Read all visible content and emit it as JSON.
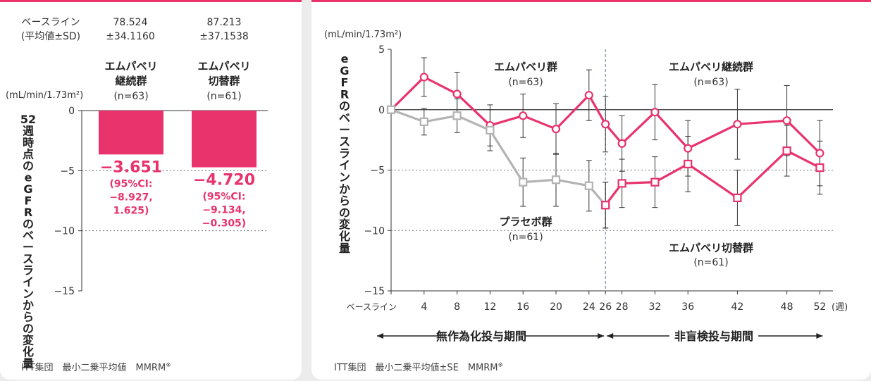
{
  "left": {
    "baseline_label": "ベースライン",
    "baseline_sub": "(平均値±SD)",
    "baseline_values": [
      "78.524",
      "87.213"
    ],
    "baseline_sds": [
      "±34.1160",
      "±37.1538"
    ],
    "unit": "(mL/min/1.73m²)",
    "y_label": "52週時点のeGFRのベースラインからの変化量",
    "footnote_main": "ITT集団　最小二乗平均値　MMRM",
    "footnote_mark": "※"
  },
  "right": {
    "unit": "(mL/min/1.73m²)",
    "y_label": "eGFRのベースラインからの変化量",
    "x_unit": "(週)",
    "period1": "無作為化投与期間",
    "period2": "非盲検投与期間",
    "labels": {
      "emp_group": "エムパベリ群",
      "emp_group_n": "(n=63)",
      "cont_group": "エムパベリ継続群",
      "cont_group_n": "(n=63)",
      "placebo_group": "プラセボ群",
      "placebo_group_n": "(n=61)",
      "switch_group": "エムパベリ切替群",
      "switch_group_n": "(n=61)"
    },
    "footnote_main": "ITT集団　最小二乗平均値±SE　MMRM",
    "footnote_mark": "※"
  },
  "chart_data": [
    {
      "type": "bar",
      "categories": [
        "エムパベリ継続群",
        "エムパベリ切替群"
      ],
      "category_lines": [
        [
          "エムパベリ",
          "継続群",
          "(n=63)"
        ],
        [
          "エムパベリ",
          "切替群",
          "(n=61)"
        ]
      ],
      "values": [
        -3.651,
        -4.72
      ],
      "value_labels": [
        "−3.651",
        "−4.720"
      ],
      "ci_labels": [
        [
          "(95%CI:",
          "−8.927,",
          "1.625)"
        ],
        [
          "(95%CI:",
          "−9.134,",
          "−0.305)"
        ]
      ],
      "ylim": [
        -15,
        0
      ],
      "yticks": [
        0,
        -5,
        -10,
        -15
      ],
      "ytick_labels": [
        "0",
        "−5",
        "−10",
        "−15"
      ],
      "colors": {
        "bar": "#e8336d",
        "label": "#e8336d"
      }
    },
    {
      "type": "line",
      "x_tick_labels": [
        "ベースライン",
        "4",
        "8",
        "12",
        "16",
        "20",
        "24",
        "26",
        "28",
        "32",
        "36",
        "42",
        "48",
        "52"
      ],
      "ylim": [
        -15,
        5
      ],
      "yticks": [
        5,
        0,
        -5,
        -10,
        -15
      ],
      "ytick_labels": [
        "5",
        "0",
        "−5",
        "−10",
        "−15"
      ],
      "series": [
        {
          "color": "#e8336d",
          "marker": "circle",
          "x": [
            0,
            4,
            8,
            12,
            16,
            20,
            24,
            26,
            28,
            32,
            36,
            42,
            48,
            52
          ],
          "y": [
            0,
            2.7,
            1.3,
            -1.3,
            -0.5,
            -1.6,
            1.2,
            -1.2,
            -2.8,
            -0.2,
            -3.2,
            -1.2,
            -0.9,
            -3.6
          ],
          "err": [
            0,
            1.6,
            1.8,
            1.7,
            1.8,
            2.1,
            2.1,
            2.3,
            2.3,
            2.3,
            2.3,
            2.9,
            2.9,
            2.7
          ]
        },
        {
          "color": "#b3b3b3",
          "marker": "square",
          "x": [
            0,
            4,
            8,
            12,
            16,
            20,
            24,
            26
          ],
          "y": [
            0,
            -1.0,
            -0.5,
            -1.7,
            -6.0,
            -5.8,
            -6.3,
            -7.9
          ],
          "err": [
            0,
            1.1,
            1.4,
            1.7,
            2.0,
            2.2,
            2.1,
            1.9
          ]
        },
        {
          "color": "#e8336d",
          "marker": "square",
          "x": [
            26,
            28,
            32,
            36,
            42,
            48,
            52
          ],
          "y": [
            -7.9,
            -6.1,
            -6.0,
            -4.5,
            -7.3,
            -3.4,
            -4.8
          ],
          "err": [
            1.9,
            2.0,
            2.1,
            2.3,
            2.3,
            2.1,
            2.2
          ]
        }
      ],
      "divider_x": 26,
      "colors": {
        "accent": "#e8336d",
        "placebo": "#b3b3b3",
        "divider": "#7b8bb5"
      }
    }
  ]
}
